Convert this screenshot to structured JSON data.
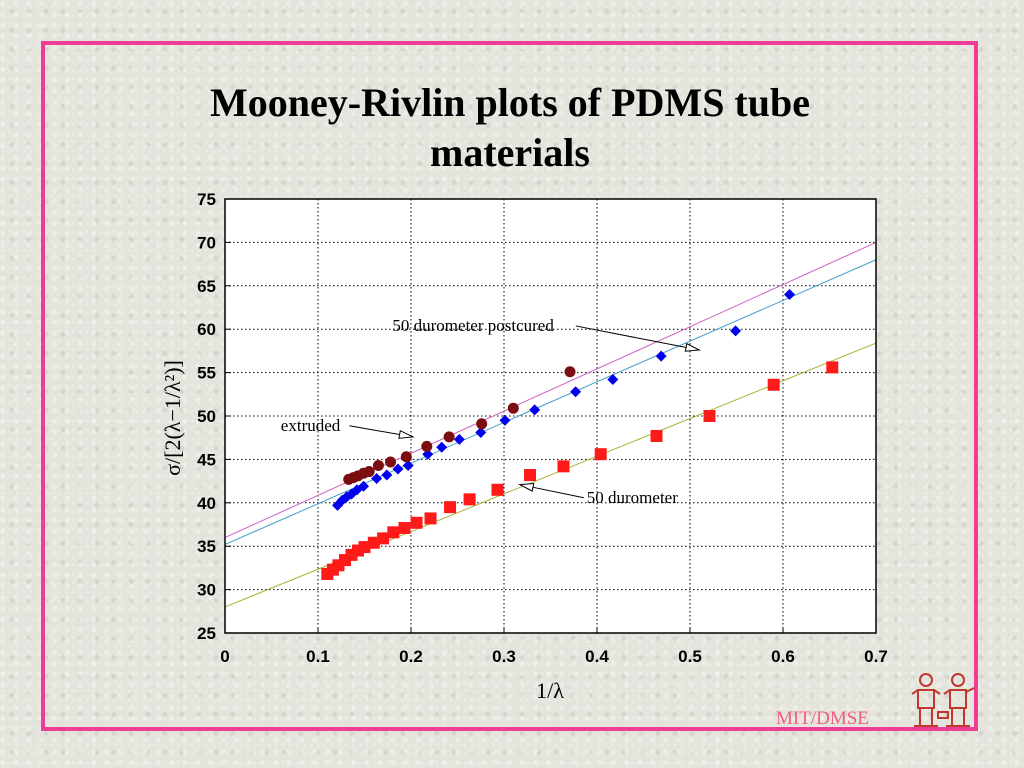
{
  "page": {
    "title_line1": "Mooney-Rivlin plots of PDMS tube",
    "title_line2": "materials",
    "credit": "MIT/DMSE"
  },
  "colors": {
    "border": "#ee3d96",
    "postcured": "#0000ee",
    "extruded": "#7a0e10",
    "durometer": "#ff1a1a",
    "fit_postcured": "#40a0c8",
    "fit_extruded": "#d060c0",
    "fit_durometer": "#a8b030"
  },
  "chart_data": {
    "type": "scatter",
    "title": "Mooney-Rivlin plots of PDMS tube materials",
    "xlabel": "1/λ",
    "ylabel": "σ/[2(λ−1/λ²)]",
    "xlim": [
      0,
      0.7
    ],
    "ylim": [
      25,
      75
    ],
    "xticks": [
      0,
      0.1,
      0.2,
      0.3,
      0.4,
      0.5,
      0.6,
      0.7
    ],
    "xtick_labels": [
      "0",
      "0.1",
      "0.2",
      "0.3",
      "0.4",
      "0.5",
      "0.6",
      "0.7"
    ],
    "yticks": [
      25,
      30,
      35,
      40,
      45,
      50,
      55,
      60,
      65,
      70,
      75
    ],
    "ytick_labels": [
      "25",
      "30",
      "35",
      "40",
      "45",
      "50",
      "55",
      "60",
      "65",
      "70",
      "75"
    ],
    "grid": true,
    "series": [
      {
        "key": "postcured",
        "marker": "diamond",
        "x": [
          0.121,
          0.126,
          0.131,
          0.136,
          0.142,
          0.149,
          0.163,
          0.174,
          0.186,
          0.197,
          0.218,
          0.233,
          0.252,
          0.275,
          0.301,
          0.333,
          0.377,
          0.417,
          0.469,
          0.549,
          0.607
        ],
        "y": [
          39.7,
          40.3,
          40.7,
          41.0,
          41.5,
          41.9,
          42.8,
          43.2,
          43.9,
          44.3,
          45.6,
          46.4,
          47.3,
          48.1,
          49.5,
          50.7,
          52.8,
          54.2,
          56.9,
          59.8,
          64.0
        ],
        "fit": [
          [
            0,
            35.2
          ],
          [
            0.7,
            68.0
          ]
        ]
      },
      {
        "key": "extruded",
        "marker": "circle",
        "x": [
          0.133,
          0.138,
          0.143,
          0.149,
          0.155,
          0.165,
          0.178,
          0.195,
          0.217,
          0.241,
          0.276,
          0.31,
          0.371
        ],
        "y": [
          42.7,
          42.9,
          43.1,
          43.4,
          43.6,
          44.3,
          44.7,
          45.3,
          46.5,
          47.6,
          49.1,
          50.9,
          55.1
        ],
        "fit": [
          [
            0,
            36.0
          ],
          [
            0.7,
            70.0
          ]
        ]
      },
      {
        "key": "durometer",
        "marker": "square",
        "x": [
          0.11,
          0.116,
          0.122,
          0.129,
          0.136,
          0.143,
          0.15,
          0.16,
          0.17,
          0.181,
          0.193,
          0.206,
          0.221,
          0.242,
          0.263,
          0.293,
          0.328,
          0.364,
          0.404,
          0.464,
          0.521,
          0.59,
          0.653
        ],
        "y": [
          31.8,
          32.3,
          32.8,
          33.4,
          34.0,
          34.5,
          34.9,
          35.4,
          35.9,
          36.6,
          37.1,
          37.7,
          38.2,
          39.5,
          40.4,
          41.5,
          43.2,
          44.2,
          45.6,
          47.7,
          50.0,
          53.6,
          55.6
        ],
        "fit": [
          [
            0,
            28.0
          ],
          [
            0.7,
            58.4
          ]
        ]
      }
    ],
    "annotations": [
      {
        "text": "50 durometer postcured",
        "tx": 0.18,
        "ty": 59.8,
        "ax": 0.51,
        "ay": 57.6
      },
      {
        "text": "extruded",
        "tx": 0.06,
        "ty": 48.3,
        "ax": 0.202,
        "ay": 47.6
      },
      {
        "text": "50 durometer",
        "tx": 0.389,
        "ty": 40.0,
        "ax": 0.317,
        "ay": 42.1
      }
    ]
  }
}
